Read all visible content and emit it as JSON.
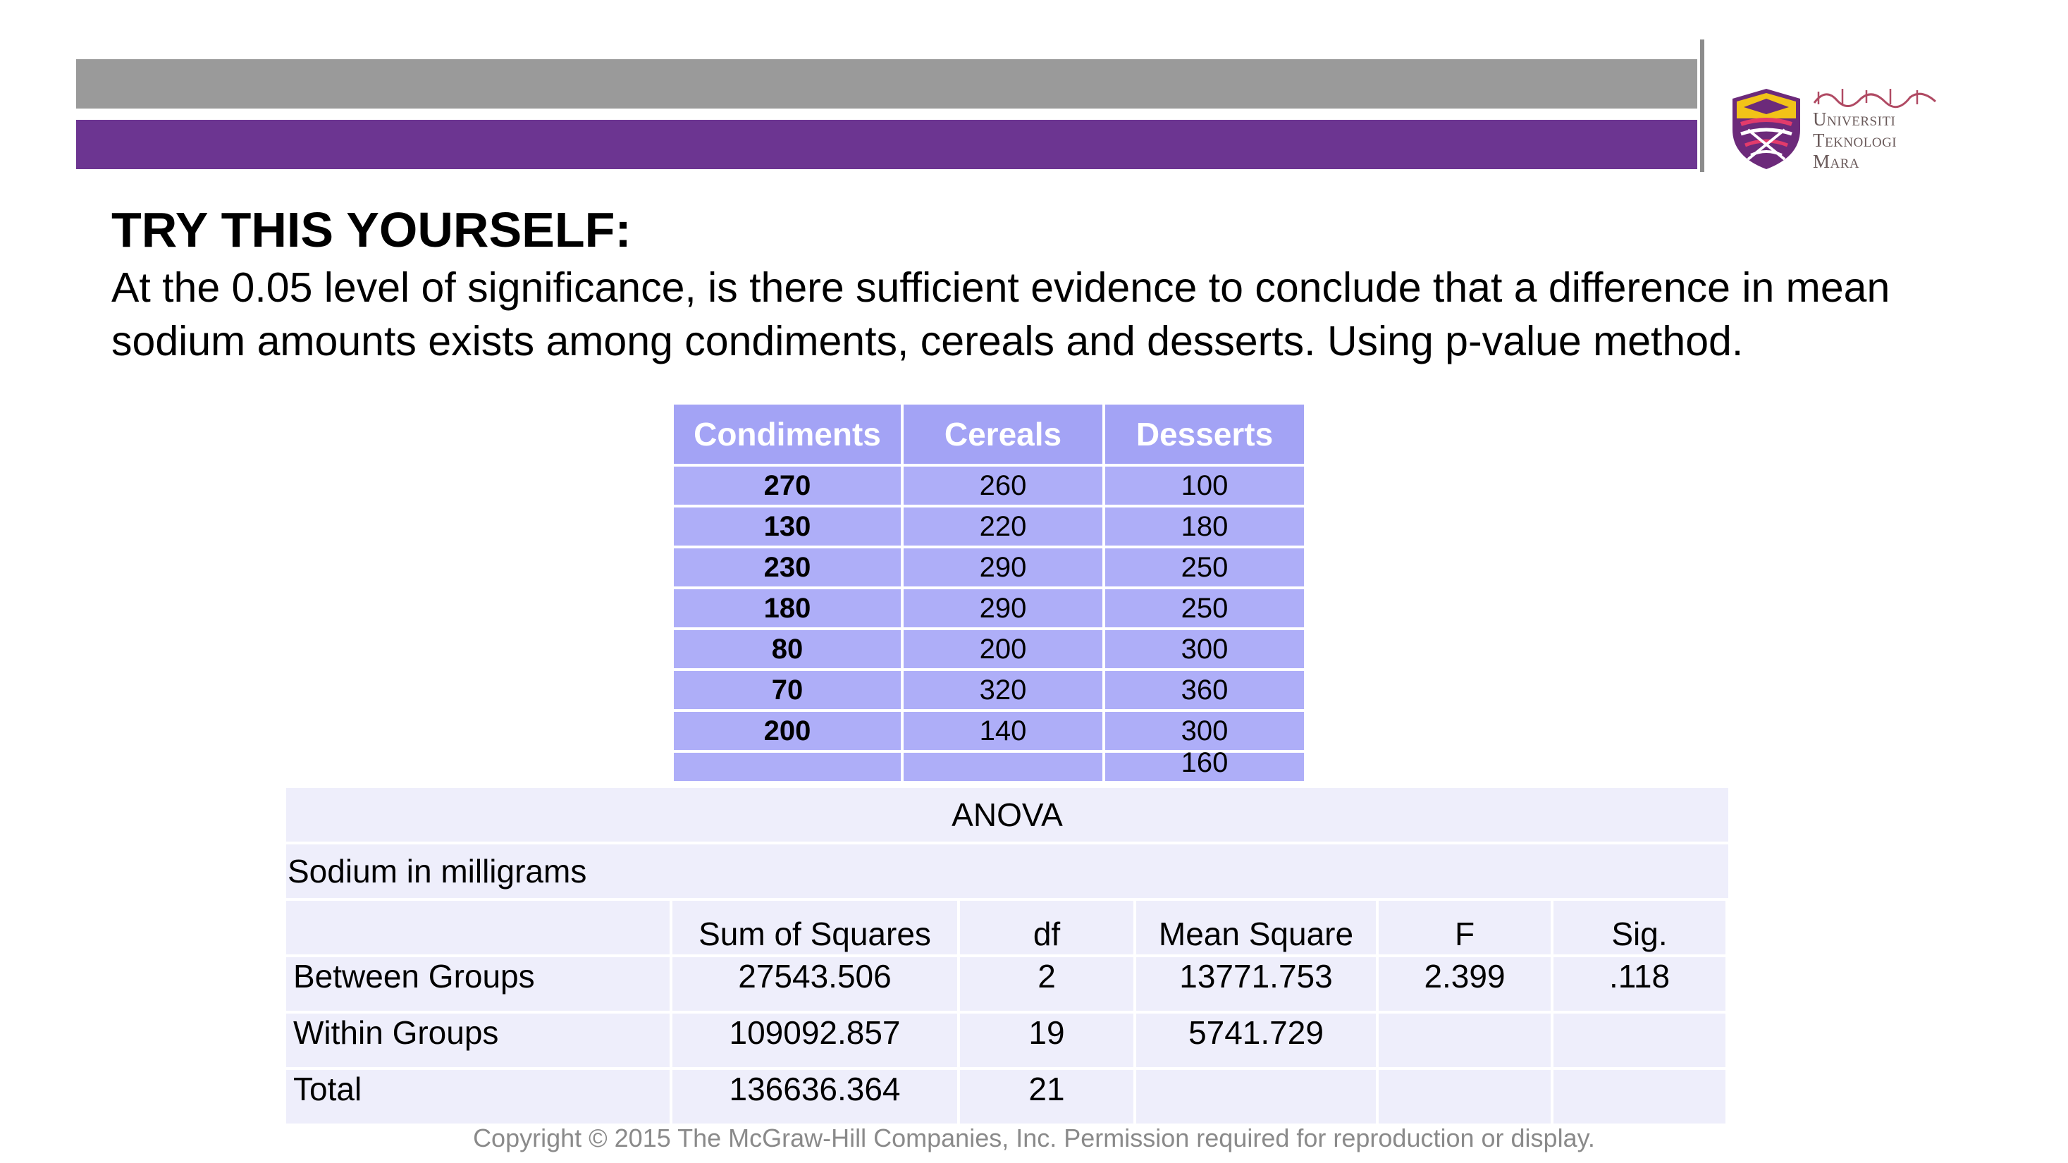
{
  "colors": {
    "gray_bar": "#9a9a9a",
    "purple_bar": "#6c3591",
    "table_header": "#a3a3f5",
    "table_cell": "#aeaef8",
    "anova_cell": "#eeeefb"
  },
  "logo": {
    "jawi": "اونيۏرسيتي تيكنولوڬي مارا",
    "lines": [
      "Universiti",
      "Teknologi",
      "Mara"
    ]
  },
  "slide": {
    "title": "TRY THIS YOURSELF:",
    "question": "At the 0.05 level of significance, is there sufficient evidence to conclude that a difference in mean sodium amounts exists among condiments, cereals and  desserts. Using p-value method."
  },
  "data_table": {
    "headers": [
      "Condiments",
      "Cereals",
      "Desserts"
    ],
    "rows": [
      [
        "270",
        "260",
        "100"
      ],
      [
        "130",
        "220",
        "180"
      ],
      [
        "230",
        "290",
        "250"
      ],
      [
        "180",
        "290",
        "250"
      ],
      [
        "80",
        "200",
        "300"
      ],
      [
        "70",
        "320",
        "360"
      ],
      [
        "200",
        "140",
        "300"
      ],
      [
        "",
        "",
        "160"
      ]
    ]
  },
  "anova": {
    "caption": "ANOVA",
    "subtitle": "Sodium  in milligrams",
    "headers": [
      "",
      "Sum of Squares",
      "df",
      "Mean Square",
      "F",
      "Sig."
    ],
    "rows": [
      [
        "Between Groups",
        "27543.506",
        "2",
        "13771.753",
        "2.399",
        ".118"
      ],
      [
        "Within Groups",
        "109092.857",
        "19",
        "5741.729",
        "",
        ""
      ],
      [
        "Total",
        "136636.364",
        "21",
        "",
        "",
        ""
      ]
    ]
  },
  "footer": "Copyright © 2015 The McGraw-Hill Companies, Inc. Permission required for reproduction or display."
}
